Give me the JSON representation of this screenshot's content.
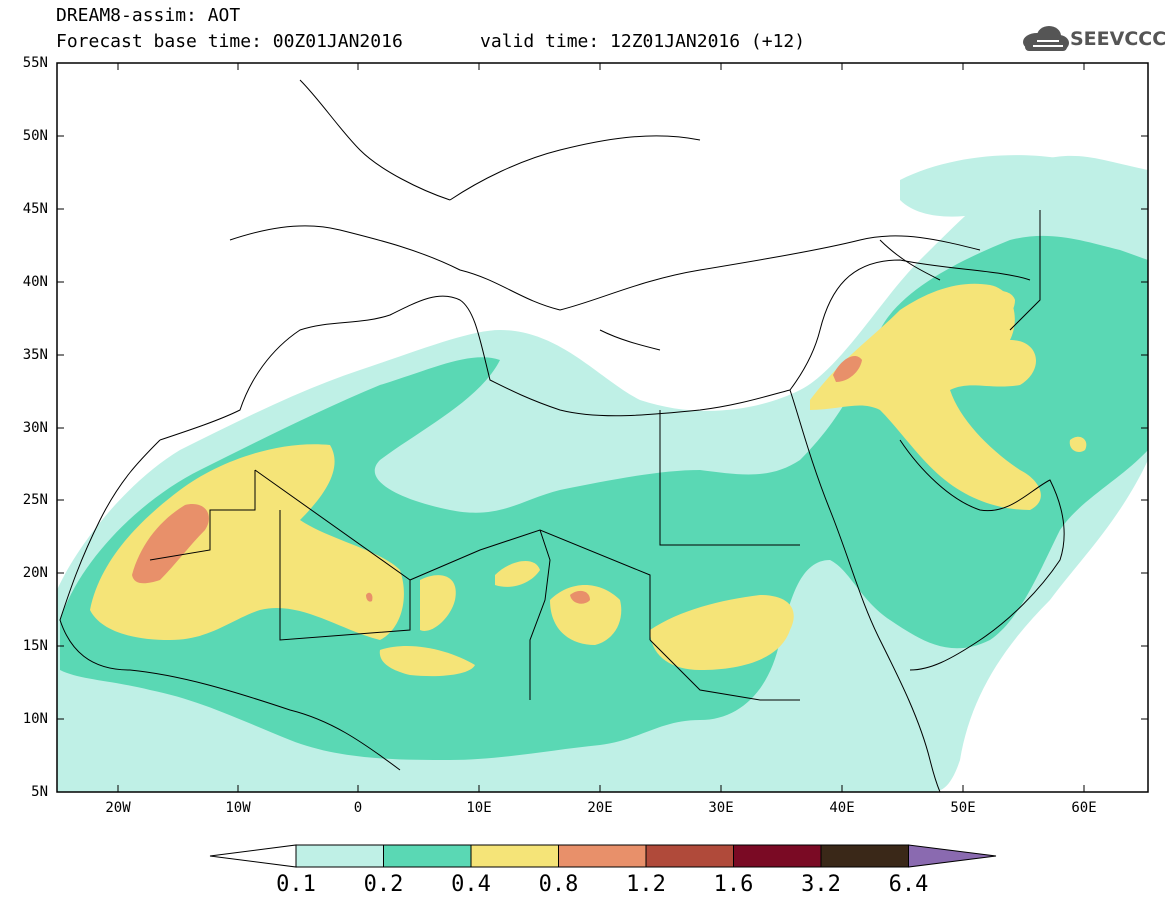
{
  "header": {
    "title": "DREAM8-assim: AOT",
    "forecast": "Forecast base time: 00Z01JAN2016",
    "valid": "valid time: 12Z01JAN2016 (+12)",
    "logo_text": "SEEVCCC"
  },
  "map": {
    "lon_range": [
      -25,
      65
    ],
    "lat_range": [
      5,
      55
    ],
    "lat_labels": [
      "55N",
      "50N",
      "45N",
      "40N",
      "35N",
      "30N",
      "25N",
      "20N",
      "15N",
      "10N",
      "5N"
    ],
    "lon_labels": [
      "20W",
      "10W",
      "0",
      "10E",
      "20E",
      "30E",
      "40E",
      "50E",
      "60E"
    ]
  },
  "legend": {
    "levels": [
      "0.1",
      "0.2",
      "0.4",
      "0.8",
      "1.2",
      "1.6",
      "3.2",
      "6.4"
    ],
    "colors": [
      "#ffffff",
      "#bff0e6",
      "#5ad8b4",
      "#f5e478",
      "#e8906a",
      "#b04a3a",
      "#7a0a24",
      "#3a2818",
      "#8a6ab0"
    ]
  }
}
